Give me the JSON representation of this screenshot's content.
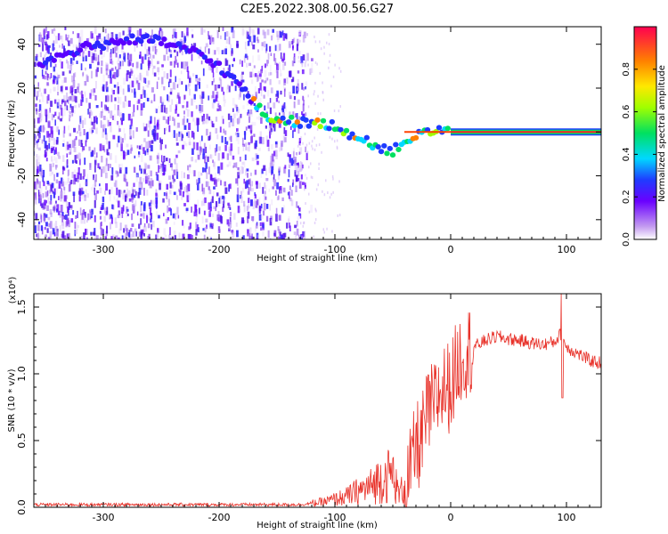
{
  "title": "C2E5.2022.308.00.56.G27",
  "chart_data": [
    {
      "type": "heatmap",
      "xlabel": "Height of straight line (km)",
      "ylabel": "Frequency (Hz)",
      "xlim": [
        -360,
        130
      ],
      "ylim": [
        -49,
        48
      ],
      "x_ticks": [
        -300,
        -200,
        -100,
        0,
        100
      ],
      "y_ticks": [
        40,
        20,
        0,
        -20,
        -40
      ],
      "colorbar": {
        "label": "Normalized spectral amplitude",
        "range": [
          0,
          1
        ],
        "ticks": [
          "0.0",
          "0.2",
          "0.4",
          "0.6",
          "0.8"
        ],
        "tick_values": [
          0,
          0.2,
          0.4,
          0.6,
          0.8
        ]
      },
      "ridge": [
        {
          "x": -355,
          "y": 31
        },
        {
          "x": -340,
          "y": 34
        },
        {
          "x": -320,
          "y": 38
        },
        {
          "x": -300,
          "y": 40
        },
        {
          "x": -280,
          "y": 42
        },
        {
          "x": -260,
          "y": 42
        },
        {
          "x": -240,
          "y": 40
        },
        {
          "x": -220,
          "y": 36
        },
        {
          "x": -200,
          "y": 30
        },
        {
          "x": -180,
          "y": 20
        },
        {
          "x": -160,
          "y": 7
        },
        {
          "x": -140,
          "y": 5
        },
        {
          "x": -120,
          "y": 4
        },
        {
          "x": -100,
          "y": 3
        },
        {
          "x": -80,
          "y": -3
        },
        {
          "x": -60,
          "y": -7
        },
        {
          "x": -50,
          "y": -9
        },
        {
          "x": -40,
          "y": -4
        },
        {
          "x": -20,
          "y": 0
        },
        {
          "x": 0,
          "y": 1
        },
        {
          "x": 130,
          "y": 0
        }
      ]
    },
    {
      "type": "line",
      "xlabel": "Height of straight line (km)",
      "ylabel": "SNR (10 * v/v)",
      "y_multiplier": "(x10⁴)",
      "xlim": [
        -360,
        130
      ],
      "ylim": [
        0,
        1.6
      ],
      "x_ticks": [
        -300,
        -200,
        -100,
        0,
        100
      ],
      "y_ticks": [
        "0.0",
        "0.5",
        "1.0",
        "1.5"
      ],
      "y_tick_values": [
        0,
        0.5,
        1.0,
        1.5
      ],
      "series": [
        {
          "color": "#e8322a",
          "x": [
            -360,
            -300,
            -200,
            -130,
            -110,
            -90,
            -80,
            -70,
            -60,
            -50,
            -45,
            -40,
            -35,
            -30,
            -25,
            -20,
            -15,
            -10,
            -5,
            0,
            5,
            10,
            20,
            30,
            40,
            50,
            60,
            70,
            80,
            90,
            95,
            100,
            110,
            120,
            130
          ],
          "y": [
            0.02,
            0.02,
            0.02,
            0.02,
            0.04,
            0.08,
            0.12,
            0.15,
            0.22,
            0.25,
            0.1,
            0.15,
            0.25,
            0.45,
            0.5,
            0.7,
            0.75,
            0.85,
            0.9,
            0.9,
            1.05,
            1.15,
            1.2,
            1.25,
            1.28,
            1.26,
            1.25,
            1.23,
            1.22,
            1.24,
            1.3,
            1.2,
            1.15,
            1.1,
            1.08
          ]
        }
      ]
    }
  ]
}
